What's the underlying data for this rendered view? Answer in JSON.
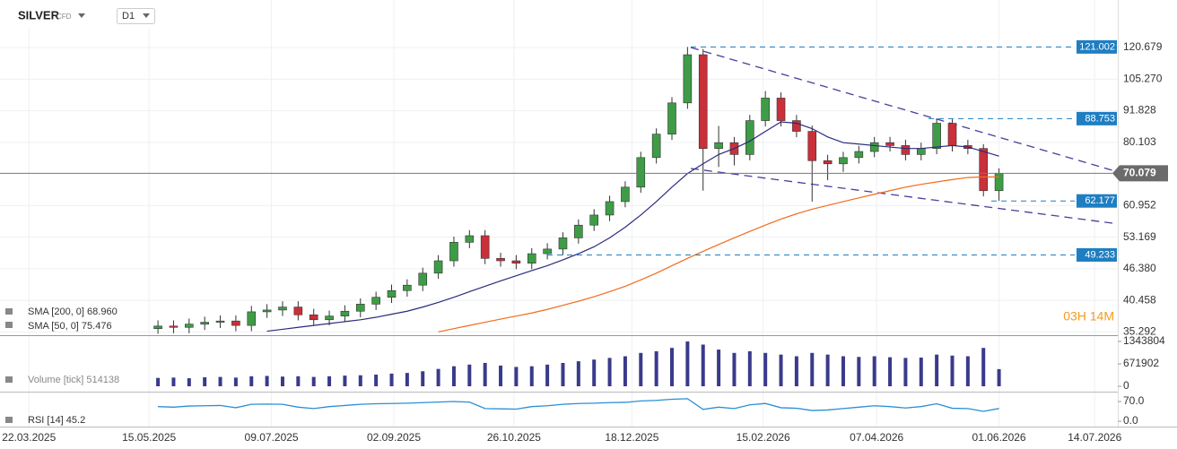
{
  "header": {
    "symbol": "SILVER",
    "symbol_type": "CFD",
    "interval": "D1",
    "countdown": "03H 14M"
  },
  "chart_data": {
    "type": "candlestick",
    "log_scale": true,
    "x": [
      "19.05.2025",
      "26.05.2025",
      "02.06.2025",
      "09.06.2025",
      "16.06.2025",
      "23.06.2025",
      "30.06.2025",
      "07.07.2025",
      "14.07.2025",
      "21.07.2025",
      "28.07.2025",
      "04.08.2025",
      "11.08.2025",
      "18.08.2025",
      "25.08.2025",
      "01.09.2025",
      "08.09.2025",
      "15.09.2025",
      "22.09.2025",
      "29.09.2025",
      "06.10.2025",
      "13.10.2025",
      "20.10.2025",
      "27.10.2025",
      "03.11.2025",
      "10.11.2025",
      "17.11.2025",
      "24.11.2025",
      "01.12.2025",
      "08.12.2025",
      "15.12.2025",
      "22.12.2025",
      "29.12.2025",
      "05.01.2026",
      "12.01.2026",
      "19.01.2026",
      "26.01.2026",
      "02.02.2026",
      "09.02.2026",
      "16.02.2026",
      "23.02.2026",
      "02.03.2026",
      "09.03.2026",
      "16.03.2026",
      "23.03.2026",
      "30.03.2026",
      "06.04.2026",
      "13.04.2026",
      "20.04.2026",
      "27.04.2026",
      "04.05.2026",
      "11.05.2026",
      "18.05.2026",
      "25.05.2026",
      "01.06.2026"
    ],
    "open": [
      35.8,
      36.2,
      36.0,
      36.5,
      36.8,
      37.0,
      36.3,
      38.5,
      38.8,
      39.3,
      38.0,
      37.2,
      37.8,
      38.6,
      39.8,
      41.0,
      42.2,
      43.2,
      45.5,
      48.0,
      52.0,
      53.5,
      48.5,
      48.0,
      47.5,
      49.5,
      50.5,
      53.0,
      56.0,
      58.5,
      62.0,
      66.0,
      75.0,
      83.0,
      95.0,
      117.0,
      78.0,
      80.0,
      76.0,
      88.0,
      97.0,
      88.0,
      84.0,
      74.0,
      73.0,
      75.0,
      77.0,
      80.0,
      79.0,
      76.0,
      78.0,
      87.0,
      79.0,
      78.0,
      65.0
    ],
    "high": [
      37.1,
      37.1,
      37.4,
      37.7,
      37.9,
      37.9,
      39.5,
      39.8,
      40.3,
      40.3,
      39.0,
      38.7,
      39.6,
      40.8,
      42.0,
      43.3,
      44.3,
      46.6,
      49.2,
      53.3,
      54.8,
      54.8,
      49.7,
      49.2,
      50.7,
      51.8,
      54.3,
      57.4,
      60.0,
      63.6,
      67.7,
      76.9,
      85.1,
      97.4,
      121.0,
      119.9,
      86.0,
      82.0,
      90.2,
      100.0,
      99.4,
      90.2,
      86.1,
      75.9,
      76.9,
      78.9,
      82.0,
      82.0,
      81.0,
      80.0,
      88.8,
      88.5,
      81.0,
      79.5,
      71.6
    ],
    "low": [
      35.0,
      35.1,
      35.1,
      35.6,
      35.9,
      35.4,
      35.4,
      37.5,
      37.8,
      37.1,
      36.3,
      36.3,
      36.9,
      37.6,
      38.8,
      40.0,
      41.1,
      42.1,
      44.4,
      46.8,
      50.7,
      47.3,
      46.8,
      46.3,
      46.3,
      48.3,
      49.2,
      51.7,
      54.6,
      57.0,
      60.5,
      64.4,
      73.1,
      80.9,
      92.6,
      65.0,
      72.0,
      72.5,
      74.1,
      85.8,
      85.8,
      81.9,
      62.0,
      68.0,
      70.5,
      73.1,
      75.1,
      77.0,
      74.1,
      74.1,
      76.1,
      77.0,
      76.1,
      63.4,
      62.2
    ],
    "close": [
      36.2,
      36.0,
      36.5,
      36.8,
      37.0,
      36.3,
      38.5,
      38.8,
      39.3,
      38.0,
      37.2,
      37.8,
      38.6,
      39.8,
      41.0,
      42.2,
      43.2,
      45.5,
      48.0,
      52.0,
      53.5,
      48.5,
      48.0,
      47.5,
      49.5,
      50.5,
      53.0,
      56.0,
      58.5,
      62.0,
      66.0,
      75.0,
      83.0,
      95.0,
      117.0,
      78.0,
      80.0,
      76.0,
      88.0,
      97.0,
      88.0,
      84.0,
      74.0,
      73.0,
      75.0,
      77.0,
      80.0,
      79.0,
      76.0,
      78.0,
      87.0,
      79.0,
      78.0,
      65.0,
      70.0
    ],
    "up_color": "#3f9c46",
    "down_color": "#c9303a",
    "series": [
      {
        "name": "SMA [200, 0] 68.960",
        "color": "#f26b1d",
        "values": [
          null,
          null,
          null,
          null,
          null,
          null,
          null,
          null,
          null,
          null,
          null,
          null,
          null,
          null,
          null,
          null,
          null,
          null,
          35.3,
          35.8,
          36.3,
          36.8,
          37.3,
          37.8,
          38.3,
          38.9,
          39.6,
          40.3,
          41.1,
          42.0,
          43.0,
          44.2,
          45.5,
          47.0,
          48.5,
          50.0,
          51.5,
          53.0,
          54.5,
          56.0,
          57.5,
          58.8,
          60.0,
          61.0,
          62.0,
          63.0,
          64.0,
          65.0,
          66.0,
          66.8,
          67.5,
          68.2,
          68.8,
          69.0,
          68.96
        ]
      },
      {
        "name": "SMA [50, 0] 75.476",
        "color": "#2b2b7c",
        "values": [
          null,
          null,
          null,
          null,
          null,
          null,
          null,
          35.4,
          35.7,
          36.0,
          36.3,
          36.6,
          36.9,
          37.2,
          37.6,
          38.1,
          38.6,
          39.3,
          40.1,
          41.0,
          42.0,
          43.0,
          44.0,
          45.0,
          46.0,
          47.0,
          48.2,
          49.5,
          51.0,
          53.0,
          55.5,
          58.5,
          62.0,
          66.0,
          70.0,
          73.0,
          76.0,
          78.0,
          80.5,
          84.0,
          87.5,
          87.0,
          85.0,
          82.0,
          80.0,
          79.5,
          79.0,
          78.5,
          78.0,
          78.0,
          78.5,
          79.0,
          78.5,
          77.0,
          75.476
        ]
      }
    ],
    "levels": [
      121.002,
      88.753,
      62.177,
      49.233
    ],
    "level_color": "#1f7ec2",
    "last_price": 70.079,
    "xlim": [
      "09.03.2025",
      "20.08.2026"
    ],
    "xticks": [
      "22.03.2025",
      "15.05.2025",
      "09.07.2025",
      "02.09.2025",
      "26.10.2025",
      "18.12.2025",
      "15.02.2026",
      "07.04.2026",
      "01.06.2026",
      "14.07.2026"
    ],
    "ylim": [
      34.8,
      143.7
    ],
    "yticks": [
      35.292,
      40.458,
      {
        "value": 46.38,
        "label": "46.380"
      },
      53.169,
      60.952,
      80.103,
      91.828,
      {
        "value": 105.27,
        "label": "105.270"
      },
      120.679
    ],
    "grid": true,
    "volume": {
      "type": "bar",
      "name": "Volume [tick] 514138",
      "color": "#3a3a8c",
      "values": [
        250000,
        260000,
        240000,
        270000,
        280000,
        260000,
        300000,
        310000,
        290000,
        300000,
        280000,
        300000,
        320000,
        330000,
        350000,
        380000,
        400000,
        450000,
        520000,
        600000,
        650000,
        700000,
        620000,
        580000,
        600000,
        650000,
        700000,
        750000,
        800000,
        850000,
        900000,
        1000000,
        1050000,
        1150000,
        1343804,
        1250000,
        1100000,
        1000000,
        1050000,
        1000000,
        950000,
        900000,
        1000000,
        950000,
        900000,
        880000,
        900000,
        870000,
        850000,
        860000,
        950000,
        920000,
        900000,
        1150000,
        514138
      ],
      "ylim": [
        0,
        1478000
      ],
      "yticks": [
        0,
        671902,
        1343804
      ]
    },
    "rsi": {
      "type": "line",
      "name": "RSI [14] 45.2",
      "color": "#2a8fd6",
      "values": [
        52,
        50,
        54,
        55,
        56,
        48,
        60,
        61,
        60,
        50,
        45,
        52,
        56,
        60,
        62,
        63,
        64,
        66,
        68,
        70,
        68,
        45,
        44,
        43,
        52,
        55,
        60,
        63,
        64,
        66,
        67,
        72,
        74,
        78,
        80,
        42,
        50,
        45,
        58,
        63,
        48,
        46,
        38,
        40,
        45,
        50,
        55,
        52,
        47,
        52,
        62,
        46,
        45,
        35,
        45.2
      ],
      "ylim": [
        0,
        100
      ],
      "yticks": [
        {
          "value": 70,
          "label": "70.0"
        },
        {
          "value": 0,
          "label": "0.0"
        }
      ]
    }
  }
}
